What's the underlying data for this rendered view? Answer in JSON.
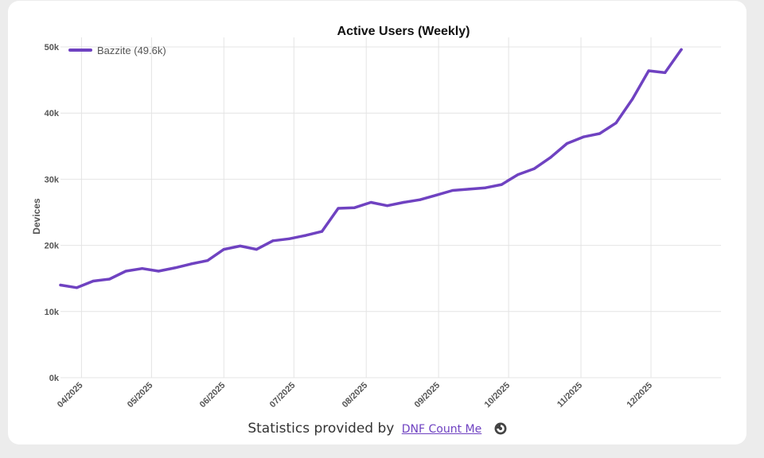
{
  "chart_data": {
    "type": "line",
    "title": "Active Users (Weekly)",
    "xlabel": "",
    "ylabel": "Devices",
    "ylim": [
      0,
      50000
    ],
    "yticks": [
      0,
      10000,
      20000,
      30000,
      40000,
      50000
    ],
    "ytick_labels": [
      "0k",
      "10k",
      "20k",
      "30k",
      "40k",
      "50k"
    ],
    "xticks": [
      "2025-04-01",
      "2025-05-01",
      "2025-06-01",
      "2025-07-01",
      "2025-08-01",
      "2025-09-01",
      "2025-10-01",
      "2025-11-01",
      "2025-12-01"
    ],
    "xtick_labels": [
      "04/2025",
      "05/2025",
      "06/2025",
      "07/2025",
      "08/2025",
      "09/2025",
      "10/2025",
      "11/2025",
      "12/2025"
    ],
    "xlim": [
      "2025-03-23",
      "2025-12-31"
    ],
    "grid": true,
    "legend": "top-left",
    "series": [
      {
        "name": "Bazzite (49.6k)",
        "color": "#6f42c1",
        "x": [
          "2025-03-23",
          "2025-03-30",
          "2025-04-06",
          "2025-04-13",
          "2025-04-20",
          "2025-04-27",
          "2025-05-04",
          "2025-05-11",
          "2025-05-18",
          "2025-05-25",
          "2025-06-01",
          "2025-06-08",
          "2025-06-15",
          "2025-06-22",
          "2025-06-29",
          "2025-07-06",
          "2025-07-13",
          "2025-07-20",
          "2025-07-27",
          "2025-08-03",
          "2025-08-10",
          "2025-08-17",
          "2025-08-24",
          "2025-08-31",
          "2025-09-07",
          "2025-09-14",
          "2025-09-21",
          "2025-09-28",
          "2025-10-05",
          "2025-10-12",
          "2025-10-19",
          "2025-10-26",
          "2025-11-02",
          "2025-11-09",
          "2025-11-16",
          "2025-11-23",
          "2025-11-30",
          "2025-12-07",
          "2025-12-14"
        ],
        "values": [
          14000,
          13600,
          14600,
          14900,
          16100,
          16500,
          16100,
          16600,
          17200,
          17700,
          19400,
          19900,
          19400,
          20700,
          21000,
          21500,
          22100,
          25600,
          25700,
          26500,
          26000,
          26500,
          26900,
          27600,
          28300,
          28500,
          28700,
          29200,
          30700,
          31600,
          33300,
          35400,
          36400,
          36900,
          38500,
          42100,
          46400,
          46100,
          49600
        ]
      }
    ]
  },
  "footer": {
    "prefix": "Statistics provided by",
    "link_text": "DNF Count Me",
    "logo_icon": "dnf-count-me-logo-icon"
  }
}
